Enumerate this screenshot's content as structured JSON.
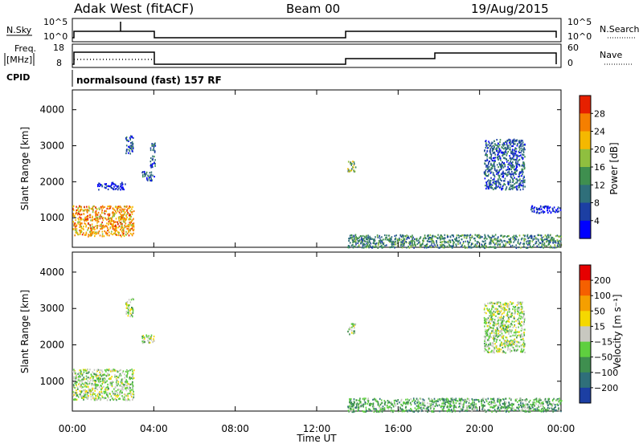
{
  "header": {
    "title": "Adak West (fitACF)",
    "beam": "Beam 00",
    "date": "19/Aug/2015"
  },
  "param_panels": {
    "nsky_label": "N.Sky",
    "nsearch_label": "N.Search",
    "freq_label_1": "Freq.",
    "freq_label_2": "[MHz]",
    "nave_label": "Nave",
    "cpid_label": "CPID",
    "cpid_text": "normalsound (fast) 157 RF",
    "noise_left_ticks": [
      "10^5",
      "10^0"
    ],
    "noise_right_ticks": [
      "10^5",
      "10^0"
    ],
    "freq_ticks": [
      "18",
      "8"
    ],
    "nave_ticks": [
      "60",
      "0"
    ]
  },
  "chart_data": [
    {
      "type": "heatmap",
      "panel": "power",
      "ylabel": "Slant Range [km]",
      "yticks": [
        "1000",
        "2000",
        "3000",
        "4000"
      ],
      "ylim": [
        180,
        4550
      ],
      "xlim": [
        0,
        24
      ],
      "colorbar_label": "Power [dB]",
      "colorbar_ticks": [
        "4",
        "8",
        "12",
        "16",
        "20",
        "24",
        "28"
      ],
      "colors": [
        "#0000ff",
        "#1c3fa3",
        "#2f6f7a",
        "#3f8f4f",
        "#8fbf3f",
        "#f5b800",
        "#f57f00",
        "#e62000"
      ],
      "regions": [
        {
          "t0": 0.0,
          "t1": 3.0,
          "r0": 500,
          "r1": 1350,
          "level": 6
        },
        {
          "t0": 1.2,
          "t1": 2.6,
          "r0": 1800,
          "r1": 2000,
          "level": 1
        },
        {
          "t0": 2.6,
          "t1": 3.0,
          "r0": 2800,
          "r1": 3300,
          "level": 2
        },
        {
          "t0": 3.4,
          "t1": 4.0,
          "r0": 2050,
          "r1": 2300,
          "level": 2
        },
        {
          "t0": 3.8,
          "t1": 4.05,
          "r0": 2400,
          "r1": 3100,
          "level": 2
        },
        {
          "t0": 13.5,
          "t1": 13.9,
          "r0": 2300,
          "r1": 2600,
          "level": 4
        },
        {
          "t0": 20.2,
          "t1": 22.2,
          "r0": 1800,
          "r1": 3200,
          "level": 2
        },
        {
          "t0": 22.5,
          "t1": 24.0,
          "r0": 1150,
          "r1": 1350,
          "level": 1
        },
        {
          "t0": 13.5,
          "t1": 24.0,
          "r0": 180,
          "r1": 550,
          "level": 3
        }
      ]
    },
    {
      "type": "heatmap",
      "panel": "velocity",
      "ylabel": "Slant Range [km]",
      "yticks": [
        "1000",
        "2000",
        "3000",
        "4000"
      ],
      "ylim": [
        180,
        4550
      ],
      "xlim": [
        0,
        24
      ],
      "xlabel": "Time UT",
      "xticks": [
        "00:00",
        "04:00",
        "08:00",
        "12:00",
        "16:00",
        "20:00",
        "00:00"
      ],
      "colorbar_label": "Velocity [m s⁻¹]",
      "colorbar_ticks": [
        "200",
        "100",
        "50",
        "15",
        "−15",
        "−50",
        "−100",
        "−200"
      ],
      "colors": [
        "#1c3fa3",
        "#2f6f7a",
        "#3f8f4f",
        "#5fcf3f",
        "#c8c8c0",
        "#f5d800",
        "#f59f00",
        "#f56000",
        "#e60000"
      ],
      "regions": [
        {
          "t0": 0.0,
          "t1": 3.0,
          "r0": 500,
          "r1": 1350,
          "level": 4
        },
        {
          "t0": 2.6,
          "t1": 3.0,
          "r0": 2800,
          "r1": 3300,
          "level": 4
        },
        {
          "t0": 3.4,
          "t1": 4.0,
          "r0": 2050,
          "r1": 2300,
          "level": 4
        },
        {
          "t0": 13.5,
          "t1": 13.9,
          "r0": 2300,
          "r1": 2600,
          "level": 4
        },
        {
          "t0": 20.2,
          "t1": 22.2,
          "r0": 1800,
          "r1": 3200,
          "level": 4
        },
        {
          "t0": 13.5,
          "t1": 24.0,
          "r0": 180,
          "r1": 550,
          "level": 3
        }
      ]
    }
  ]
}
